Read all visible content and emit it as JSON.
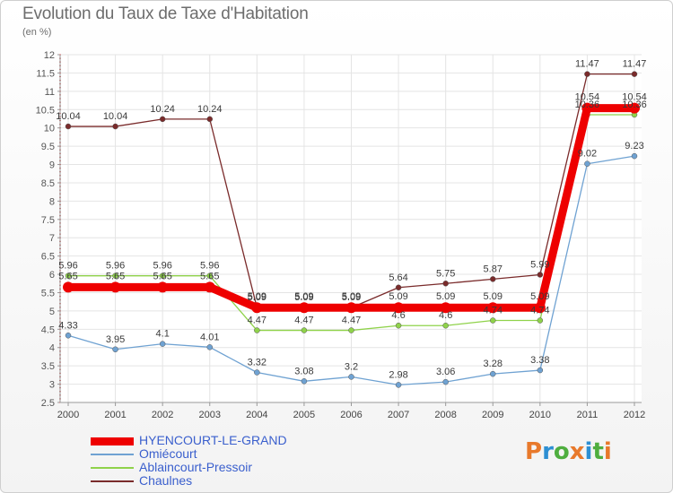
{
  "title": "Evolution du Taux de Taxe d'Habitation",
  "unit": "(en %)",
  "logo": {
    "letters": [
      "P",
      "r",
      "o",
      "x",
      "i",
      "t",
      "i"
    ],
    "colors": [
      "#e8792b",
      "#2d8fd3",
      "#4fae3f",
      "#e8792b",
      "#2d8fd3",
      "#4fae3f",
      "#e8792b"
    ]
  },
  "chart_data": {
    "type": "line",
    "title": "Evolution du Taux de Taxe d'Habitation",
    "ylabel": "(en %)",
    "xlabel": "",
    "ylim": [
      2.5,
      12
    ],
    "y_ticks": [
      "2.5",
      "3",
      "3.5",
      "4",
      "4.5",
      "5",
      "5.5",
      "6",
      "6.5",
      "7",
      "7.5",
      "8",
      "8.5",
      "9",
      "9.5",
      "10",
      "10.5",
      "11",
      "11.5",
      "12"
    ],
    "x": [
      "2000",
      "2001",
      "2002",
      "2003",
      "2004",
      "2005",
      "2006",
      "2007",
      "2008",
      "2009",
      "2010",
      "2011",
      "2012"
    ],
    "grid": true,
    "legend_position": "bottom-left",
    "series": [
      {
        "name": "Chaulnes",
        "color": "#7a2b2b",
        "values": [
          10.04,
          10.04,
          10.24,
          10.24,
          5.09,
          5.09,
          5.09,
          5.64,
          5.75,
          5.87,
          5.99,
          11.47,
          11.47
        ],
        "labels": [
          "10.04",
          "10.04",
          "10.24",
          "10.24",
          "5.09",
          "5.09",
          "5.09",
          "5.64",
          "5.75",
          "5.87",
          "5.99",
          "11.47",
          "11.47"
        ]
      },
      {
        "name": "Ablaincourt-Pressoir",
        "color": "#8fd24a",
        "values": [
          5.96,
          5.96,
          5.96,
          5.96,
          4.47,
          4.47,
          4.47,
          4.6,
          4.6,
          4.74,
          4.74,
          10.36,
          10.36
        ],
        "labels": [
          "5.96",
          "5.96",
          "5.96",
          "5.96",
          "4.47",
          "4.47",
          "4.47",
          "4.6",
          "4.6",
          "4.74",
          "4.74",
          "10.36",
          "10.36"
        ]
      },
      {
        "name": "Omiécourt",
        "color": "#6fa2d2",
        "values": [
          4.33,
          3.95,
          4.1,
          4.01,
          3.32,
          3.08,
          3.2,
          2.98,
          3.06,
          3.28,
          3.38,
          9.02,
          9.23
        ],
        "labels": [
          "4.33",
          "3.95",
          "4.1",
          "4.01",
          "3.32",
          "3.08",
          "3.2",
          "2.98",
          "3.06",
          "3.28",
          "3.38",
          "9.02",
          "9.23"
        ]
      },
      {
        "name": "HYENCOURT-LE-GRAND",
        "color": "#ee0000",
        "values": [
          5.65,
          5.65,
          5.65,
          5.65,
          5.09,
          5.09,
          5.09,
          5.09,
          5.09,
          5.09,
          5.09,
          10.54,
          10.54
        ],
        "labels": [
          "5.65",
          "5.65",
          "5.65",
          "5.65",
          "5.09",
          "5.09",
          "5.09",
          "5.09",
          "5.09",
          "5.09",
          "5.09",
          "10.54",
          "10.54"
        ]
      }
    ],
    "legend": [
      "HYENCOURT-LE-GRAND",
      "Omiécourt",
      "Ablaincourt-Pressoir",
      "Chaulnes"
    ]
  }
}
